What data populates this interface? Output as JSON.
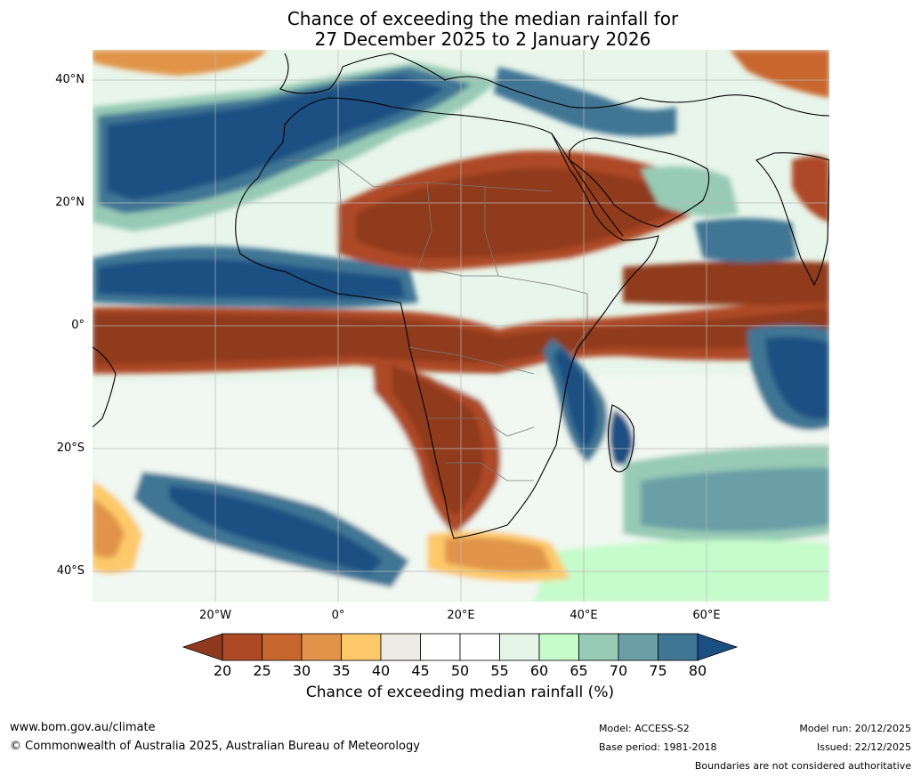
{
  "title": {
    "line1": "Chance of exceeding the median rainfall for",
    "line2": "27 December 2025 to 2 January 2026"
  },
  "axes": {
    "lat_ticks": [
      "40°N",
      "20°N",
      "0°",
      "20°S",
      "40°S"
    ],
    "lon_ticks": [
      "20°W",
      "0°",
      "20°E",
      "40°E",
      "60°E"
    ]
  },
  "colorbar": {
    "ticks": [
      "20",
      "25",
      "30",
      "35",
      "40",
      "45",
      "50",
      "55",
      "60",
      "65",
      "70",
      "75",
      "80"
    ],
    "label": "Chance of exceeding median rainfall (%)",
    "colors": [
      "#8f3a1e",
      "#ad4a25",
      "#c8662f",
      "#e19449",
      "#fdc96b",
      "#ecebe6",
      "#ffffff",
      "#ffffff",
      "#e4f4e6",
      "#c6fbcb",
      "#97cbb5",
      "#6a9fa6",
      "#3f7694",
      "#1a4f82"
    ]
  },
  "footer": {
    "website": "www.bom.gov.au/climate",
    "copyright": "© Commonwealth of Australia 2025, Australian Bureau of Meteorology",
    "model": "Model: ACCESS-S2",
    "base_period": "Base period: 1981-2018",
    "model_run": "Model run: 20/12/2025",
    "issued": "Issued: 22/12/2025",
    "disclaimer": "Boundaries are not considered authoritative"
  }
}
